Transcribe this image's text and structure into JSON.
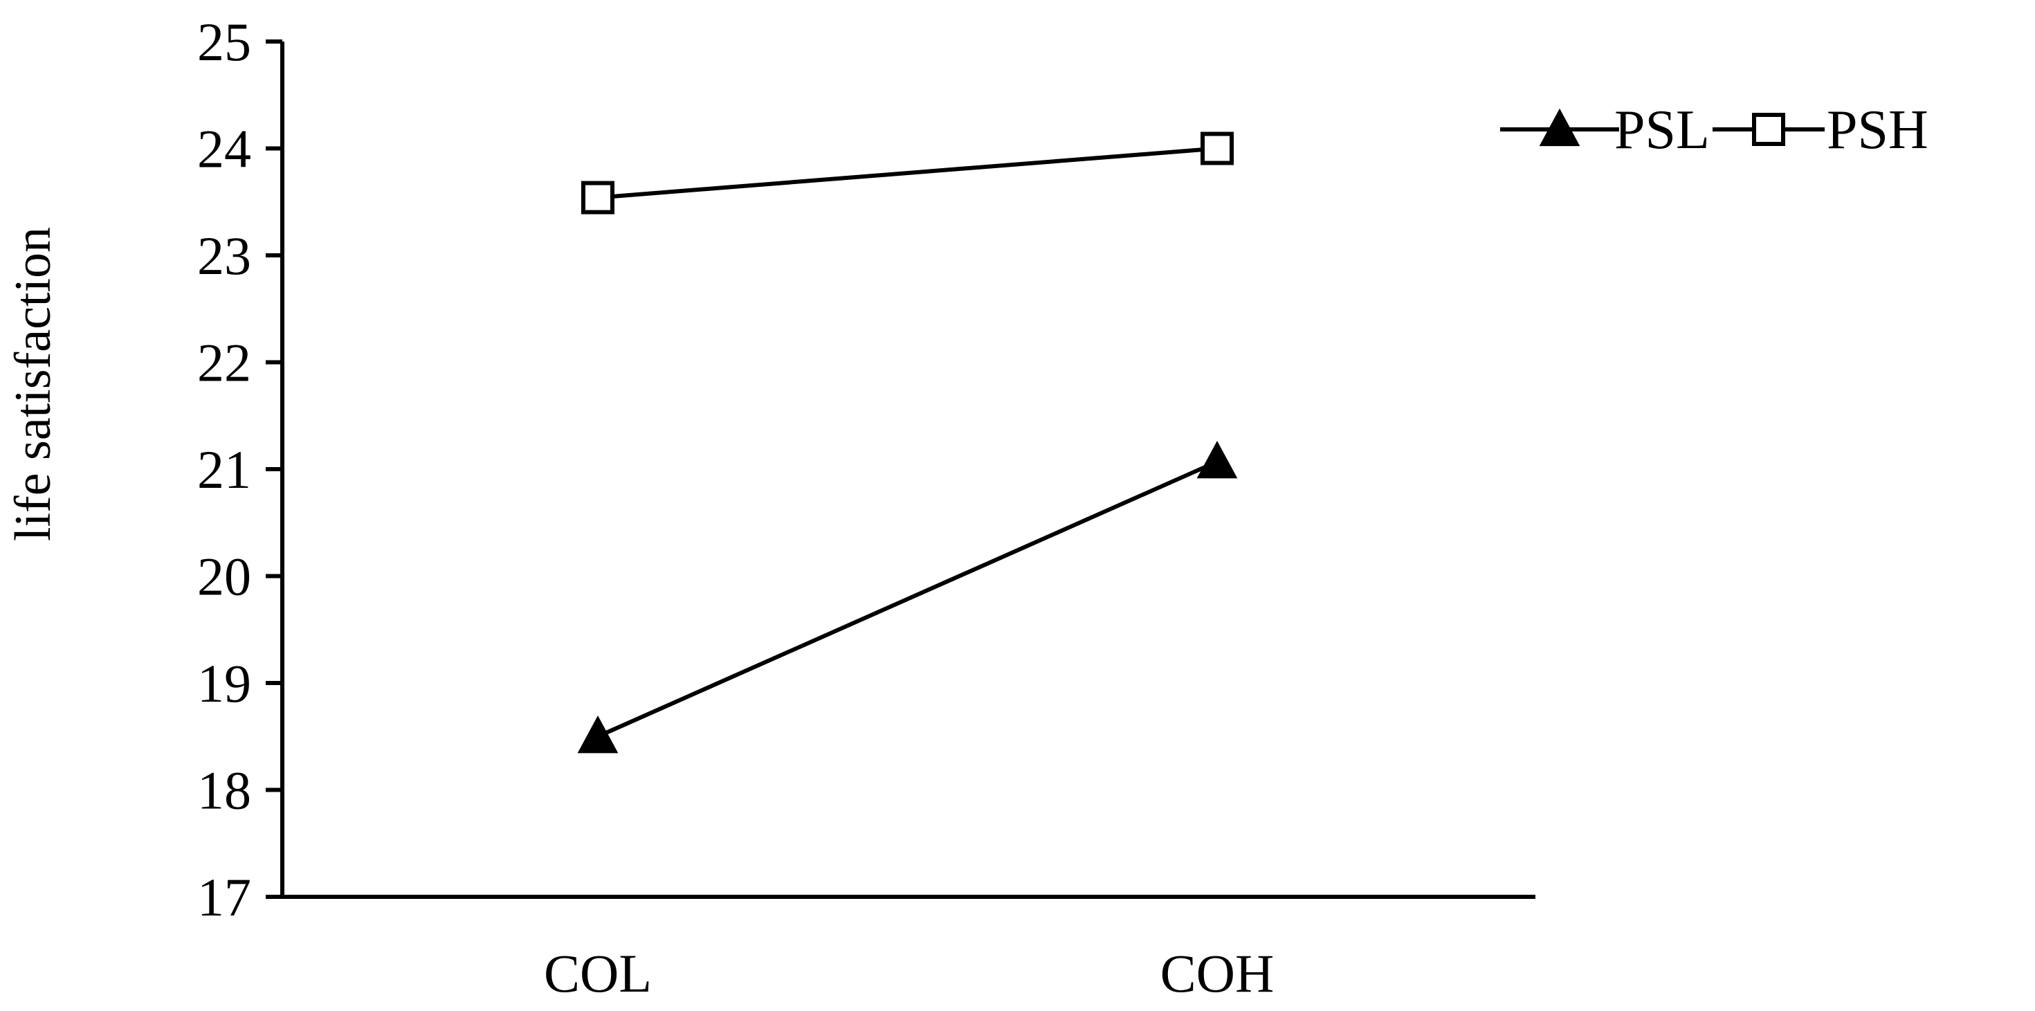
{
  "chart_data": {
    "type": "line",
    "title": "",
    "xlabel": "",
    "ylabel": "life satisfaction",
    "categories": [
      "COL",
      "COH"
    ],
    "ylim": [
      17,
      25
    ],
    "yticks": [
      17,
      18,
      19,
      20,
      21,
      22,
      23,
      24,
      25
    ],
    "grid": false,
    "legend_position": "top-right",
    "series": [
      {
        "name": "PSL",
        "marker": "filled-triangle",
        "values": [
          18.5,
          21.07
        ]
      },
      {
        "name": "PSH",
        "marker": "open-square",
        "values": [
          23.54,
          24.0
        ]
      }
    ],
    "colors": {
      "line": "#000000",
      "background": "#ffffff"
    }
  }
}
